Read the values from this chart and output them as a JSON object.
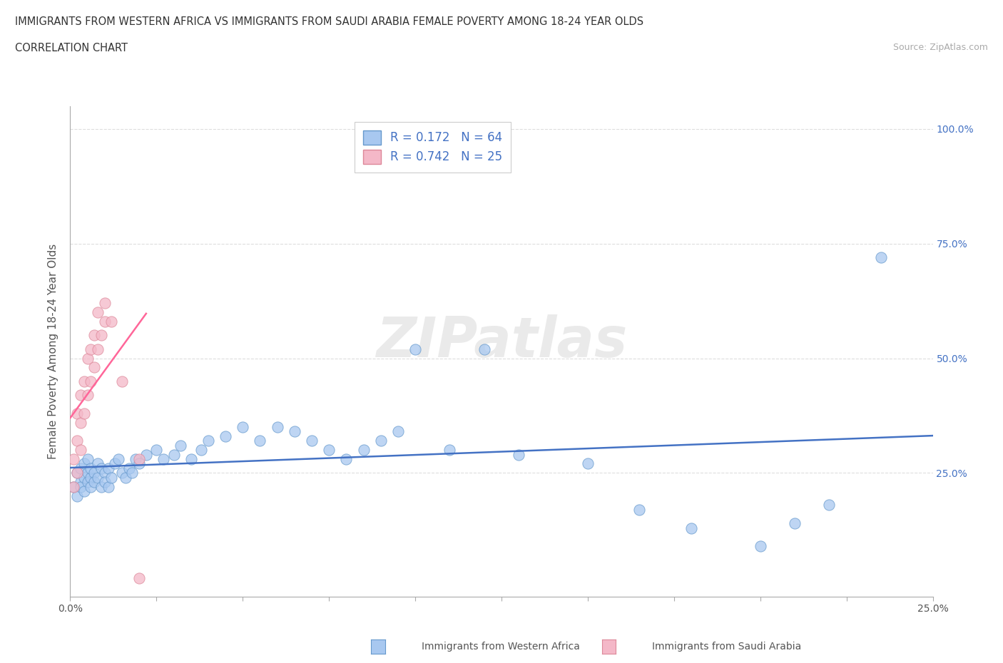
{
  "title_line1": "IMMIGRANTS FROM WESTERN AFRICA VS IMMIGRANTS FROM SAUDI ARABIA FEMALE POVERTY AMONG 18-24 YEAR OLDS",
  "title_line2": "CORRELATION CHART",
  "source_text": "Source: ZipAtlas.com",
  "ylabel": "Female Poverty Among 18-24 Year Olds",
  "xmin": 0.0,
  "xmax": 0.25,
  "ymin": -0.02,
  "ymax": 1.05,
  "series1_color": "#A8C8F0",
  "series1_edgecolor": "#6699CC",
  "series2_color": "#F4B8C8",
  "series2_edgecolor": "#DD8899",
  "line1_color": "#4472C4",
  "line2_color": "#FF6699",
  "R1": 0.172,
  "N1": 64,
  "R2": 0.742,
  "N2": 25,
  "legend_label1": "Immigrants from Western Africa",
  "legend_label2": "Immigrants from Saudi Arabia",
  "watermark": "ZIPatlas",
  "background_color": "#FFFFFF",
  "grid_color": "#DDDDDD",
  "series1_x": [
    0.001,
    0.002,
    0.002,
    0.003,
    0.003,
    0.003,
    0.004,
    0.004,
    0.004,
    0.005,
    0.005,
    0.005,
    0.006,
    0.006,
    0.006,
    0.007,
    0.007,
    0.008,
    0.008,
    0.009,
    0.009,
    0.01,
    0.01,
    0.011,
    0.011,
    0.012,
    0.013,
    0.014,
    0.015,
    0.016,
    0.017,
    0.018,
    0.019,
    0.02,
    0.022,
    0.025,
    0.027,
    0.03,
    0.032,
    0.035,
    0.038,
    0.04,
    0.045,
    0.05,
    0.055,
    0.06,
    0.065,
    0.07,
    0.075,
    0.08,
    0.085,
    0.09,
    0.095,
    0.1,
    0.11,
    0.12,
    0.13,
    0.15,
    0.165,
    0.18,
    0.2,
    0.21,
    0.22,
    0.235
  ],
  "series1_y": [
    0.22,
    0.25,
    0.2,
    0.23,
    0.26,
    0.22,
    0.24,
    0.27,
    0.21,
    0.25,
    0.23,
    0.28,
    0.24,
    0.22,
    0.26,
    0.25,
    0.23,
    0.24,
    0.27,
    0.22,
    0.26,
    0.25,
    0.23,
    0.26,
    0.22,
    0.24,
    0.27,
    0.28,
    0.25,
    0.24,
    0.26,
    0.25,
    0.28,
    0.27,
    0.29,
    0.3,
    0.28,
    0.29,
    0.31,
    0.28,
    0.3,
    0.32,
    0.33,
    0.35,
    0.32,
    0.35,
    0.34,
    0.32,
    0.3,
    0.28,
    0.3,
    0.32,
    0.34,
    0.52,
    0.3,
    0.52,
    0.29,
    0.27,
    0.17,
    0.13,
    0.09,
    0.14,
    0.18,
    0.72
  ],
  "series2_x": [
    0.001,
    0.001,
    0.002,
    0.002,
    0.002,
    0.003,
    0.003,
    0.003,
    0.004,
    0.004,
    0.005,
    0.005,
    0.006,
    0.006,
    0.007,
    0.007,
    0.008,
    0.008,
    0.009,
    0.01,
    0.01,
    0.012,
    0.015,
    0.02,
    0.02
  ],
  "series2_y": [
    0.22,
    0.28,
    0.25,
    0.32,
    0.38,
    0.3,
    0.36,
    0.42,
    0.38,
    0.45,
    0.42,
    0.5,
    0.45,
    0.52,
    0.48,
    0.55,
    0.52,
    0.6,
    0.55,
    0.58,
    0.62,
    0.58,
    0.45,
    0.02,
    0.28
  ],
  "line2_x_start": 0.0,
  "line2_x_end": 0.022,
  "ytick_values": [
    0.0,
    0.25,
    0.5,
    0.75,
    1.0
  ],
  "right_ytick_values": [
    0.25,
    0.5,
    0.75,
    1.0
  ],
  "right_ytick_labels": [
    "25.0%",
    "50.0%",
    "75.0%",
    "100.0%"
  ]
}
